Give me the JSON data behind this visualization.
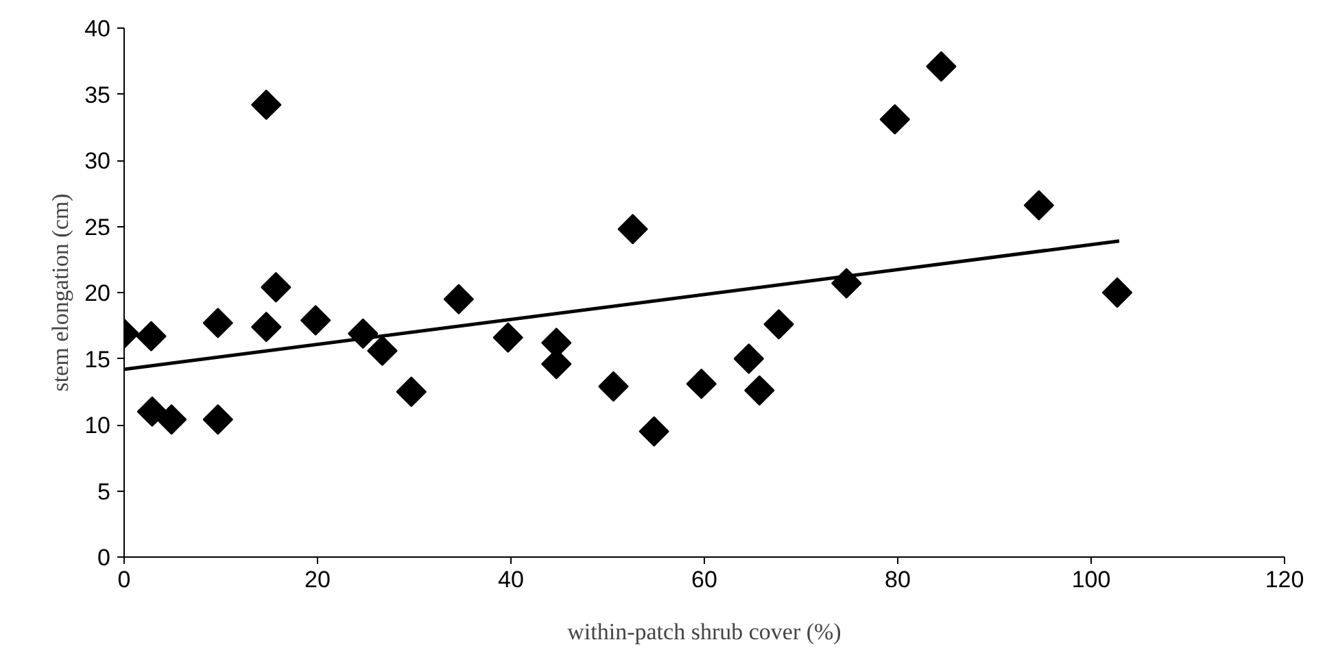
{
  "chart_data": {
    "type": "scatter",
    "xlabel": "within-patch shrub cover (%)",
    "ylabel": "stem elongation (cm)",
    "xlim": [
      0,
      120
    ],
    "xticks": [
      0,
      20,
      40,
      60,
      80,
      100,
      120
    ],
    "ylim": [
      0,
      40
    ],
    "yticks": [
      0,
      5,
      10,
      15,
      20,
      25,
      30,
      35,
      40
    ],
    "grid": false,
    "series": [
      {
        "marker": "diamond",
        "color": "#000000",
        "x": [
          0,
          2.8,
          2.9,
          4.9,
          9.7,
          9.7,
          14.7,
          14.7,
          15.7,
          19.8,
          24.7,
          26.7,
          29.7,
          34.6,
          39.7,
          44.7,
          44.7,
          50.6,
          52.6,
          54.8,
          59.7,
          64.6,
          65.7,
          67.7,
          74.7,
          79.7,
          84.5,
          94.6,
          102.7
        ],
        "values": [
          16.9,
          16.7,
          11.0,
          10.4,
          17.7,
          10.4,
          34.2,
          17.4,
          20.4,
          17.9,
          16.9,
          15.6,
          12.5,
          19.5,
          16.6,
          16.2,
          14.6,
          12.9,
          24.8,
          9.5,
          13.1,
          15.0,
          12.6,
          17.6,
          20.7,
          33.1,
          37.1,
          26.6,
          20.0
        ]
      },
      {
        "type": "line",
        "color": "#000000",
        "line_style": "solid",
        "x": [
          0,
          102.9
        ],
        "values": [
          14.2,
          23.9
        ]
      }
    ]
  }
}
